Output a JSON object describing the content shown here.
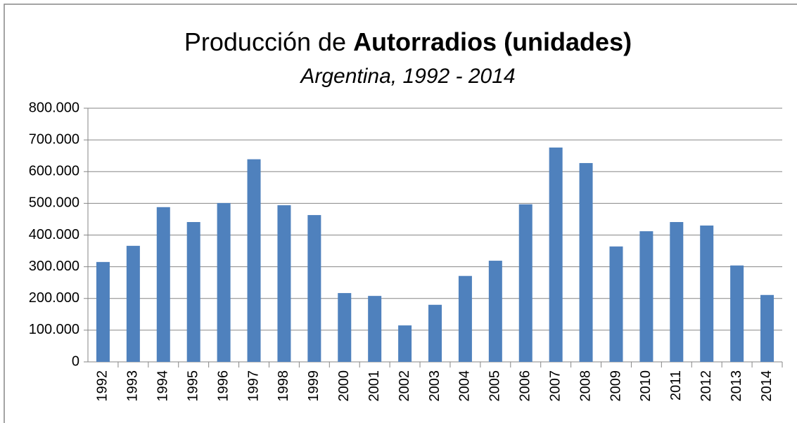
{
  "chart_data": {
    "type": "bar",
    "title": [
      "Producción de",
      "Autorradios (unidades)"
    ],
    "subtitle": "Argentina, 1992 - 2014",
    "categories": [
      "1992",
      "1993",
      "1994",
      "1995",
      "1996",
      "1997",
      "1998",
      "1999",
      "2000",
      "2001",
      "2002",
      "2003",
      "2004",
      "2005",
      "2006",
      "2007",
      "2008",
      "2009",
      "2010",
      "2011",
      "2012",
      "2013",
      "2014"
    ],
    "values": [
      315000,
      366000,
      488000,
      441000,
      501000,
      639000,
      494000,
      463000,
      217000,
      208000,
      115000,
      180000,
      271000,
      319000,
      497000,
      676000,
      627000,
      364000,
      412000,
      441000,
      430000,
      304000,
      211000
    ],
    "color": "#4f81bd",
    "ylim": [
      0,
      800000
    ],
    "yticks": [
      0,
      {
        "value": 100000,
        "label": "100.000"
      },
      {
        "value": 200000,
        "label": "200.000"
      },
      {
        "value": 300000,
        "label": "300.000"
      },
      {
        "value": 400000,
        "label": "400.000"
      },
      {
        "value": 500000,
        "label": "500.000"
      },
      {
        "value": 600000,
        "label": "600.000"
      },
      {
        "value": 700000,
        "label": "700.000"
      },
      {
        "value": 800000,
        "label": "800.000"
      }
    ],
    "grid": true
  }
}
